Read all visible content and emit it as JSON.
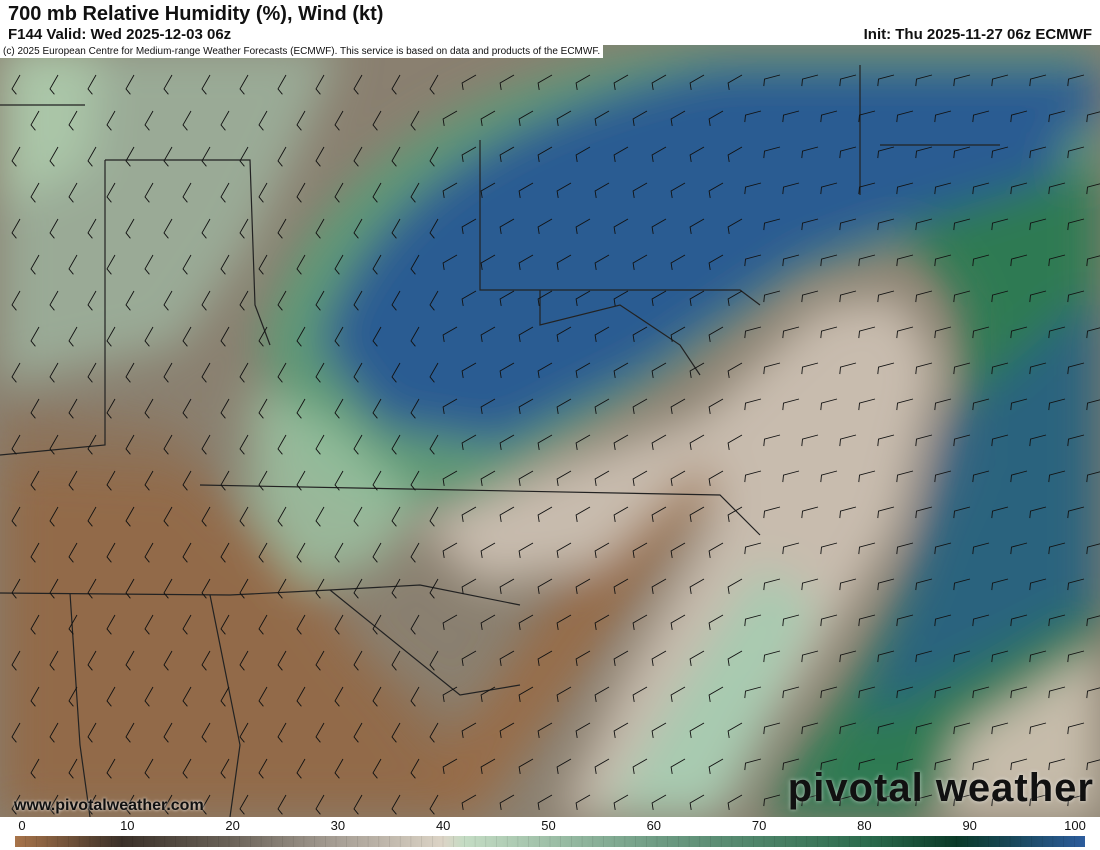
{
  "header": {
    "title": "700 mb Relative Humidity (%), Wind (kt)",
    "valid": "F144 Valid: Wed 2025-12-03 06z",
    "init": "Init: Thu 2025-11-27 06z ECMWF"
  },
  "map": {
    "credit": "(c) 2025 European Centre for Medium-range Weather Forecasts (ECMWF). This service is based on data and products of the ECMWF.",
    "website": "www.pivotalweather.com",
    "logo": "pivotal weather"
  },
  "colorbar": {
    "ticks": [
      "0",
      "10",
      "20",
      "30",
      "40",
      "50",
      "60",
      "70",
      "80",
      "90",
      "100"
    ],
    "stops": [
      {
        "value": 0,
        "color": "#a8744a"
      },
      {
        "value": 10,
        "color": "#3a3028"
      },
      {
        "value": 20,
        "color": "#6a6258"
      },
      {
        "value": 30,
        "color": "#a69e94"
      },
      {
        "value": 40,
        "color": "#dcd4c6"
      },
      {
        "value": 42,
        "color": "#c4dcc4"
      },
      {
        "value": 60,
        "color": "#6e9c84"
      },
      {
        "value": 80,
        "color": "#2a6a4c"
      },
      {
        "value": 88,
        "color": "#0a3a28"
      },
      {
        "value": 100,
        "color": "#2c5c9c"
      }
    ]
  }
}
